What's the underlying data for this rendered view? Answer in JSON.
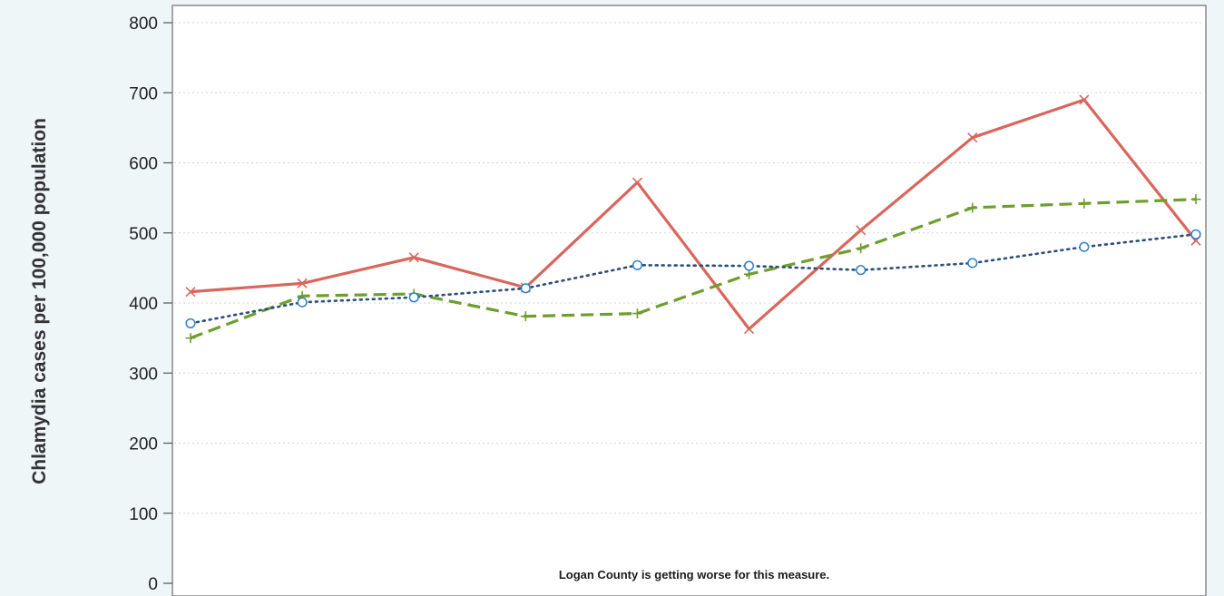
{
  "chart_data": {
    "type": "line",
    "ylabel": "Chlamydia cases per 100,000 population",
    "xlabel": "",
    "ylim": [
      0,
      800
    ],
    "yticks": [
      0,
      100,
      200,
      300,
      400,
      500,
      600,
      700,
      800
    ],
    "grid": true,
    "legend": "none",
    "annotation": "Logan County is getting worse for this measure.",
    "x": [
      1,
      2,
      3,
      4,
      5,
      6,
      7,
      8,
      9,
      10
    ],
    "series": [
      {
        "color": "#d9665c",
        "marker": "x",
        "line_style": "solid",
        "values": [
          416,
          428,
          465,
          422,
          572,
          363,
          504,
          636,
          690,
          489
        ]
      },
      {
        "color": "#6e9e2e",
        "marker": "+",
        "line_style": "dashed",
        "values": [
          350,
          410,
          413,
          381,
          385,
          441,
          478,
          536,
          542,
          548
        ]
      },
      {
        "color": "#2a4f7a",
        "marker_color": "#2f7fc8",
        "marker": "circle",
        "line_style": "dotted",
        "values": [
          371,
          401,
          408,
          421,
          454,
          453,
          447,
          457,
          480,
          498
        ]
      }
    ]
  }
}
